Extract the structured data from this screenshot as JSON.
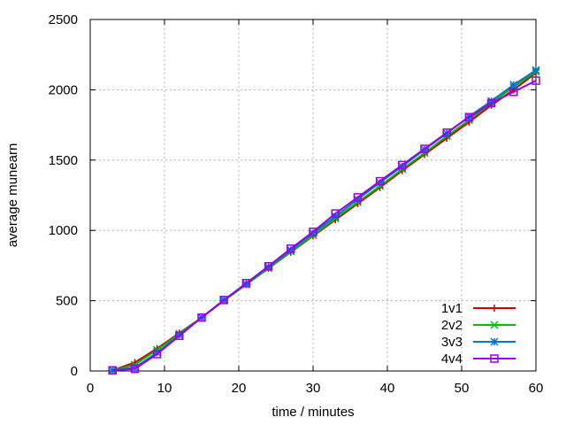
{
  "chart_data": {
    "type": "line",
    "xlabel": "time / minutes",
    "ylabel": "average munearn",
    "xlim": [
      0,
      60
    ],
    "ylim": [
      0,
      2500
    ],
    "x_ticks": [
      0,
      10,
      20,
      30,
      40,
      50,
      60
    ],
    "y_ticks": [
      0,
      500,
      1000,
      1500,
      2000,
      2500
    ],
    "x_tick_labels": [
      "0",
      "10",
      "20",
      "30",
      "40",
      "50",
      "60"
    ],
    "y_tick_labels": [
      "0",
      "500",
      "1000",
      "1500",
      "2000",
      "2500"
    ],
    "grid": true,
    "legend_position": "bottom-right",
    "x": [
      3,
      6,
      9,
      12,
      15,
      18,
      21,
      24,
      27,
      30,
      33,
      36,
      39,
      42,
      45,
      48,
      51,
      54,
      57,
      60
    ],
    "series": [
      {
        "name": "1v1",
        "color": "#cc0000",
        "marker": "plus",
        "values": [
          5,
          60,
          160,
          270,
          380,
          500,
          615,
          730,
          845,
          960,
          1075,
          1190,
          1305,
          1425,
          1540,
          1655,
          1770,
          1890,
          2000,
          2120
        ]
      },
      {
        "name": "2v2",
        "color": "#00bb00",
        "marker": "cross",
        "values": [
          5,
          45,
          150,
          265,
          380,
          500,
          615,
          730,
          850,
          965,
          1085,
          1200,
          1315,
          1435,
          1550,
          1670,
          1785,
          1905,
          2020,
          2130
        ]
      },
      {
        "name": "3v3",
        "color": "#0077cc",
        "marker": "star",
        "values": [
          5,
          25,
          130,
          255,
          380,
          505,
          620,
          740,
          860,
          980,
          1100,
          1220,
          1340,
          1455,
          1575,
          1690,
          1810,
          1920,
          2035,
          2140
        ]
      },
      {
        "name": "4v4",
        "color": "#9900ee",
        "marker": "square",
        "values": [
          5,
          15,
          120,
          250,
          380,
          505,
          625,
          745,
          870,
          990,
          1120,
          1235,
          1350,
          1465,
          1580,
          1695,
          1805,
          1905,
          1985,
          2065
        ]
      }
    ]
  }
}
